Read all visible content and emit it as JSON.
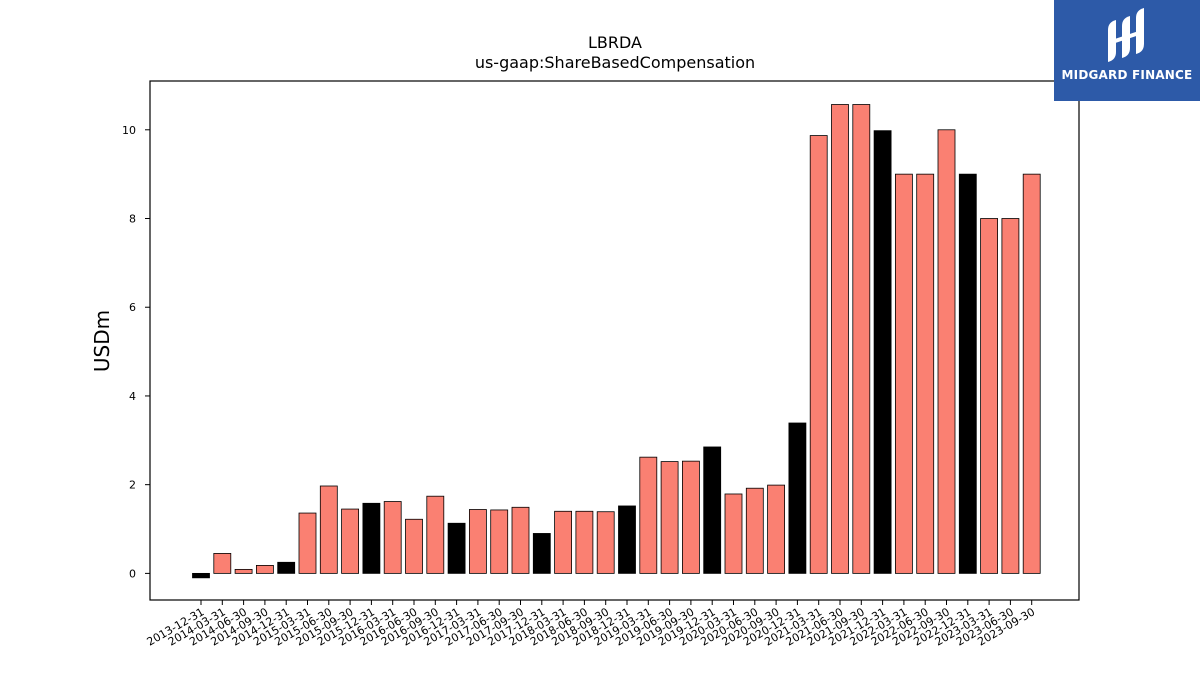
{
  "brand": {
    "name": "MIDGARD FINANCE",
    "bg_color": "#2d5aa8",
    "icon": "midgard-logo-icon"
  },
  "chart_data": {
    "type": "bar",
    "title": "LBRDA",
    "subtitle": "us-gaap:ShareBasedCompensation",
    "xlabel": "",
    "ylabel": "USDm",
    "ylim": [
      -0.6,
      11.1
    ],
    "yticks": [
      0,
      2,
      4,
      6,
      8,
      10
    ],
    "grid": false,
    "colors": {
      "quarter": "#fa8072",
      "year_end": "#000000"
    },
    "categories": [
      "2013-12-31",
      "2014-03-31",
      "2014-06-30",
      "2014-09-30",
      "2014-12-31",
      "2015-03-31",
      "2015-06-30",
      "2015-09-30",
      "2015-12-31",
      "2016-03-31",
      "2016-06-30",
      "2016-09-30",
      "2016-12-31",
      "2017-03-31",
      "2017-06-30",
      "2017-09-30",
      "2017-12-31",
      "2018-03-31",
      "2018-06-30",
      "2018-09-30",
      "2018-12-31",
      "2019-03-31",
      "2019-06-30",
      "2019-09-30",
      "2019-12-31",
      "2020-03-31",
      "2020-06-30",
      "2020-09-30",
      "2020-12-31",
      "2021-03-31",
      "2021-06-30",
      "2021-09-30",
      "2021-12-31",
      "2022-03-31",
      "2022-06-30",
      "2022-09-30",
      "2022-12-31",
      "2023-03-31",
      "2023-06-30",
      "2023-09-30"
    ],
    "values": [
      -0.1,
      0.45,
      0.09,
      0.18,
      0.25,
      1.36,
      1.97,
      1.45,
      1.58,
      1.62,
      1.22,
      1.74,
      1.13,
      1.44,
      1.43,
      1.49,
      0.9,
      1.4,
      1.4,
      1.39,
      1.52,
      2.62,
      2.52,
      2.53,
      2.85,
      1.79,
      1.92,
      1.99,
      3.39,
      9.87,
      10.57,
      10.57,
      9.98,
      9.0,
      9.0,
      10.0,
      9.0,
      8.0,
      8.0,
      9.0
    ]
  }
}
